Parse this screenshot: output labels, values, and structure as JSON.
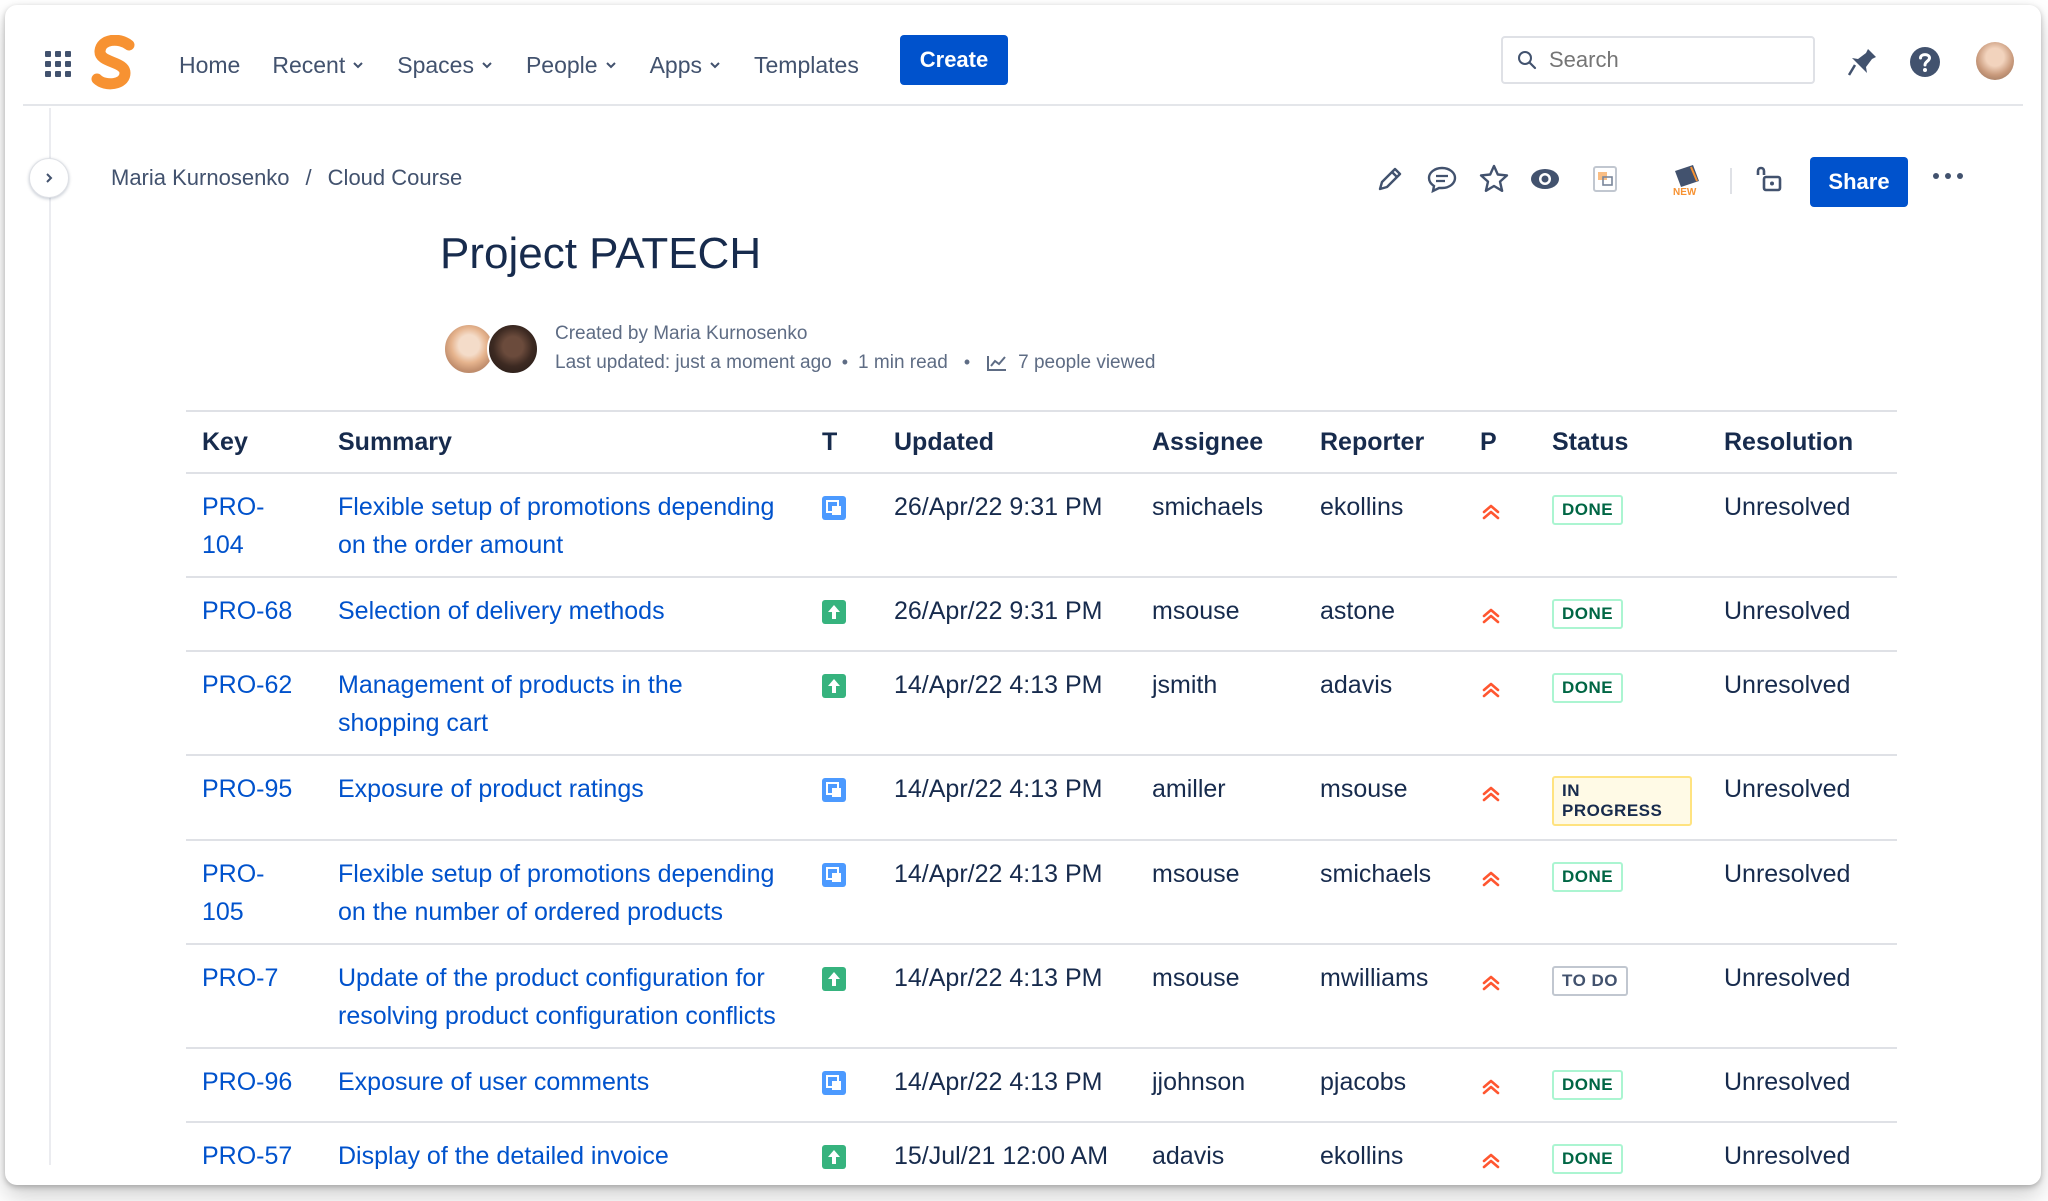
{
  "nav": {
    "items": [
      {
        "label": "Home",
        "dropdown": false
      },
      {
        "label": "Recent",
        "dropdown": true
      },
      {
        "label": "Spaces",
        "dropdown": true
      },
      {
        "label": "People",
        "dropdown": true
      },
      {
        "label": "Apps",
        "dropdown": true
      },
      {
        "label": "Templates",
        "dropdown": false
      }
    ],
    "create_label": "Create",
    "search_placeholder": "Search"
  },
  "breadcrumb": {
    "items": [
      "Maria Kurnosenko",
      "Cloud Course"
    ],
    "separator": "/"
  },
  "page_actions": {
    "share_label": "Share"
  },
  "page": {
    "title": "Project PATECH",
    "created_by": "Created by Maria Kurnosenko",
    "last_updated": "Last updated: just a moment ago",
    "read_time": "1 min read",
    "viewed": "7 people viewed"
  },
  "table": {
    "headers": [
      "Key",
      "Summary",
      "T",
      "Updated",
      "Assignee",
      "Reporter",
      "P",
      "Status",
      "Resolution"
    ],
    "rows": [
      {
        "key": "PRO-104",
        "summary": "Flexible setup of promotions depending on the order amount",
        "type": "subtask",
        "updated": "26/Apr/22 9:31 PM",
        "assignee": "smichaels",
        "reporter": "ekollins",
        "priority": "highest",
        "status": "DONE",
        "resolution": "Unresolved"
      },
      {
        "key": "PRO-68",
        "summary": "Selection of delivery methods",
        "type": "story",
        "updated": "26/Apr/22 9:31 PM",
        "assignee": "msouse",
        "reporter": "astone",
        "priority": "highest",
        "status": "DONE",
        "resolution": "Unresolved"
      },
      {
        "key": "PRO-62",
        "summary": "Management of products in the shopping cart",
        "type": "story",
        "updated": "14/Apr/22 4:13 PM",
        "assignee": "jsmith",
        "reporter": "adavis",
        "priority": "highest",
        "status": "DONE",
        "resolution": "Unresolved"
      },
      {
        "key": "PRO-95",
        "summary": "Exposure of product ratings",
        "type": "subtask",
        "updated": "14/Apr/22 4:13 PM",
        "assignee": "amiller",
        "reporter": "msouse",
        "priority": "highest",
        "status": "IN PROGRESS",
        "resolution": "Unresolved"
      },
      {
        "key": "PRO-105",
        "summary": "Flexible setup of promotions depending on the number of ordered products",
        "type": "subtask",
        "updated": "14/Apr/22 4:13 PM",
        "assignee": "msouse",
        "reporter": "smichaels",
        "priority": "highest",
        "status": "DONE",
        "resolution": "Unresolved"
      },
      {
        "key": "PRO-7",
        "summary": "Update of the product configuration for resolving product configuration conflicts",
        "type": "story",
        "updated": "14/Apr/22 4:13 PM",
        "assignee": "msouse",
        "reporter": "mwilliams",
        "priority": "highest",
        "status": "TO DO",
        "resolution": "Unresolved"
      },
      {
        "key": "PRO-96",
        "summary": "Exposure of user comments",
        "type": "subtask",
        "updated": "14/Apr/22 4:13 PM",
        "assignee": "jjohnson",
        "reporter": "pjacobs",
        "priority": "highest",
        "status": "DONE",
        "resolution": "Unresolved"
      },
      {
        "key": "PRO-57",
        "summary": "Display of the detailed invoice",
        "type": "story",
        "updated": "15/Jul/21 12:00 AM",
        "assignee": "adavis",
        "reporter": "ekollins",
        "priority": "highest",
        "status": "DONE",
        "resolution": "Unresolved"
      }
    ]
  },
  "colors": {
    "brand_blue": "#0052cc",
    "link": "#0052cc",
    "logo_orange": "#f79232",
    "priority_red": "#ff5630",
    "story_green": "#36b37e",
    "subtask_blue": "#4c9aff"
  }
}
